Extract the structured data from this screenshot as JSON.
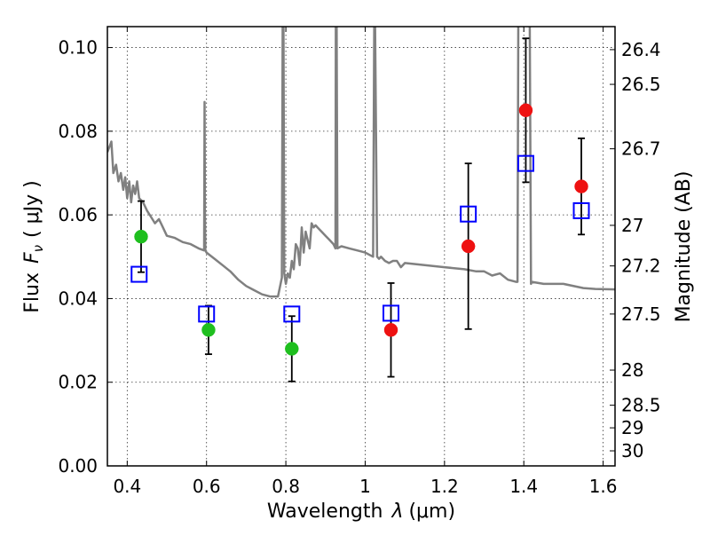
{
  "chart_data": {
    "type": "scatter",
    "xlabel": "Wavelength",
    "xlabel_symbol": "λ",
    "xlabel_unit": "(μm)",
    "ylabel": "Flux",
    "ylabel_symbol": "F",
    "ylabel_subscript": "ν",
    "ylabel_unit": "( μJy )",
    "y2label": "Magnitude (AB)",
    "xlim": [
      0.35,
      1.63
    ],
    "ylim": [
      0.0,
      0.105
    ],
    "grid": true,
    "xticks": [
      0.4,
      0.6,
      0.8,
      1.0,
      1.2,
      1.4,
      1.6
    ],
    "xtick_labels": [
      "0.4",
      "0.6",
      "0.8",
      "1",
      "1.2",
      "1.4",
      "1.6"
    ],
    "yticks": [
      0.0,
      0.02,
      0.04,
      0.06,
      0.08,
      0.1
    ],
    "ytick_labels": [
      "0.00",
      "0.02",
      "0.04",
      "0.06",
      "0.08",
      "0.10"
    ],
    "y2ticks": [
      {
        "label": "26.4",
        "flux": 0.0995
      },
      {
        "label": "26.5",
        "flux": 0.0912
      },
      {
        "label": "26.7",
        "flux": 0.0758
      },
      {
        "label": "27",
        "flux": 0.0575
      },
      {
        "label": "27.2",
        "flux": 0.0478
      },
      {
        "label": "27.5",
        "flux": 0.0363
      },
      {
        "label": "28",
        "flux": 0.0229
      },
      {
        "label": "28.5",
        "flux": 0.0145
      },
      {
        "label": "29",
        "flux": 0.0091
      },
      {
        "label": "30",
        "flux": 0.0036
      }
    ],
    "series": [
      {
        "marker": "circle",
        "color": "#1fbf1f",
        "points": [
          {
            "x": 0.435,
            "y": 0.0548,
            "err": 0.0085
          },
          {
            "x": 0.605,
            "y": 0.0325,
            "err": 0.0058
          },
          {
            "x": 0.815,
            "y": 0.028,
            "err": 0.0078
          }
        ]
      },
      {
        "marker": "circle",
        "color": "#ee1111",
        "points": [
          {
            "x": 1.065,
            "y": 0.0325,
            "err": 0.0112
          },
          {
            "x": 1.26,
            "y": 0.0525,
            "err": 0.0198
          },
          {
            "x": 1.405,
            "y": 0.085,
            "err": 0.0172
          },
          {
            "x": 1.545,
            "y": 0.0668,
            "err": 0.0115
          }
        ]
      },
      {
        "marker": "square",
        "color": "#0000ff",
        "points": [
          {
            "x": 0.43,
            "y": 0.0458
          },
          {
            "x": 0.6,
            "y": 0.0363
          },
          {
            "x": 0.815,
            "y": 0.0363
          },
          {
            "x": 1.065,
            "y": 0.0365
          },
          {
            "x": 1.26,
            "y": 0.0602
          },
          {
            "x": 1.405,
            "y": 0.0723
          },
          {
            "x": 1.545,
            "y": 0.061
          }
        ]
      },
      {
        "marker": "line",
        "color": "#808080",
        "x": [
          0.35,
          0.36,
          0.365,
          0.372,
          0.378,
          0.384,
          0.39,
          0.395,
          0.4,
          0.405,
          0.41,
          0.415,
          0.42,
          0.425,
          0.43,
          0.44,
          0.45,
          0.46,
          0.47,
          0.48,
          0.49,
          0.5,
          0.52,
          0.54,
          0.56,
          0.58,
          0.594,
          0.595,
          0.596,
          0.597,
          0.6,
          0.62,
          0.64,
          0.66,
          0.68,
          0.7,
          0.72,
          0.74,
          0.76,
          0.78,
          0.79,
          0.792,
          0.794,
          0.796,
          0.8,
          0.805,
          0.81,
          0.815,
          0.82,
          0.825,
          0.83,
          0.835,
          0.84,
          0.845,
          0.85,
          0.86,
          0.865,
          0.87,
          0.875,
          0.88,
          0.89,
          0.9,
          0.91,
          0.92,
          0.925,
          0.926,
          0.928,
          0.93,
          0.94,
          0.96,
          0.98,
          1.0,
          1.02,
          1.023,
          1.025,
          1.03,
          1.035,
          1.04,
          1.05,
          1.06,
          1.07,
          1.08,
          1.09,
          1.1,
          1.15,
          1.2,
          1.25,
          1.28,
          1.3,
          1.32,
          1.34,
          1.36,
          1.38,
          1.384,
          1.386,
          1.39,
          1.4,
          1.41,
          1.415,
          1.418,
          1.42,
          1.45,
          1.5,
          1.55,
          1.58,
          1.63
        ],
        "y": [
          0.075,
          0.0775,
          0.07,
          0.072,
          0.068,
          0.07,
          0.066,
          0.069,
          0.064,
          0.068,
          0.063,
          0.067,
          0.065,
          0.068,
          0.064,
          0.063,
          0.061,
          0.0595,
          0.058,
          0.059,
          0.057,
          0.055,
          0.0545,
          0.0535,
          0.053,
          0.052,
          0.0515,
          0.087,
          0.06,
          0.0515,
          0.051,
          0.0495,
          0.048,
          0.0465,
          0.0445,
          0.043,
          0.042,
          0.041,
          0.0405,
          0.0405,
          0.045,
          0.106,
          0.106,
          0.046,
          0.0435,
          0.046,
          0.045,
          0.049,
          0.047,
          0.053,
          0.052,
          0.048,
          0.057,
          0.051,
          0.056,
          0.052,
          0.058,
          0.057,
          0.0575,
          0.057,
          0.056,
          0.055,
          0.054,
          0.053,
          0.052,
          0.106,
          0.106,
          0.052,
          0.0525,
          0.052,
          0.0515,
          0.051,
          0.05,
          0.106,
          0.106,
          0.05,
          0.0495,
          0.05,
          0.049,
          0.0485,
          0.049,
          0.049,
          0.0475,
          0.0485,
          0.048,
          0.0475,
          0.047,
          0.0465,
          0.0465,
          0.0455,
          0.046,
          0.0445,
          0.044,
          0.044,
          0.106,
          0.106,
          0.106,
          0.106,
          0.106,
          0.0435,
          0.044,
          0.0435,
          0.0435,
          0.0425,
          0.0423,
          0.0422
        ]
      }
    ]
  }
}
